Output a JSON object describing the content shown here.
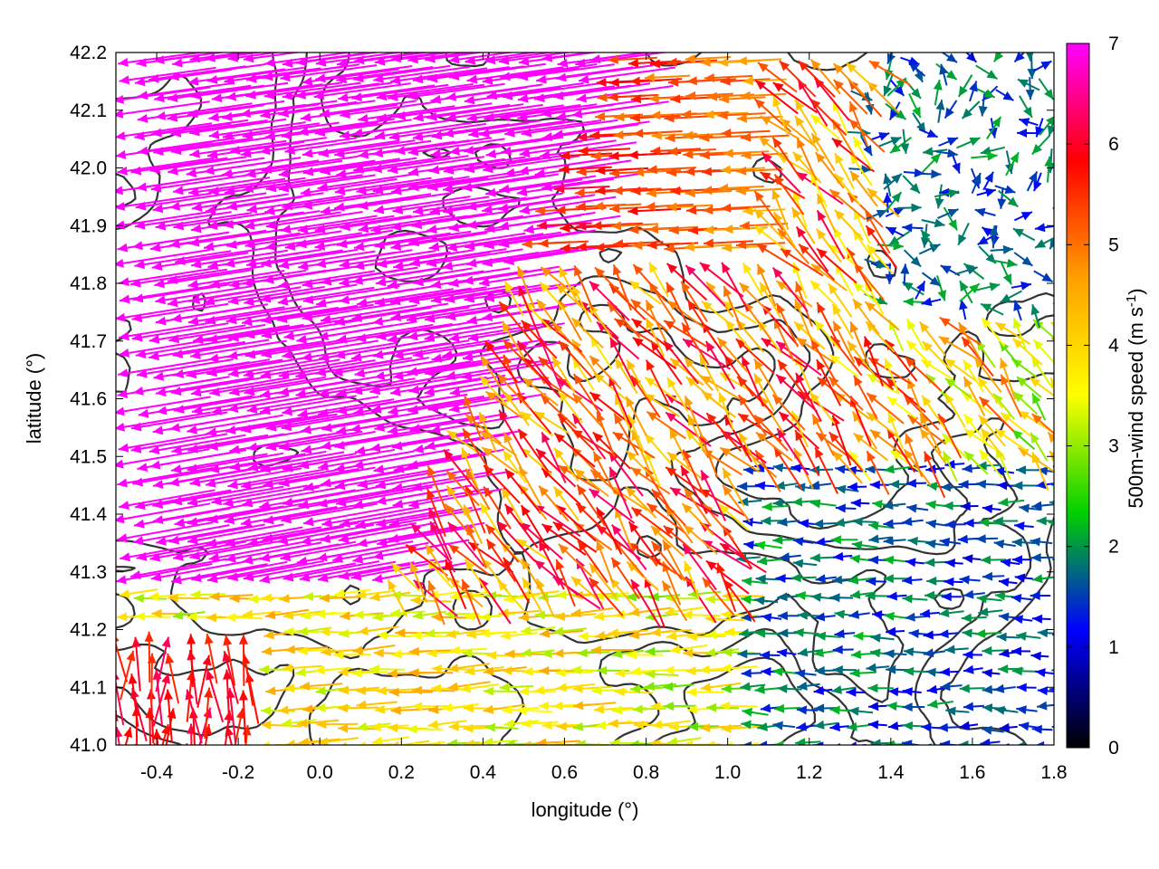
{
  "chart_data": {
    "type": "vector-field",
    "xlabel": "longitude (°)",
    "ylabel": "latitude (°)",
    "xlim": [
      -0.5,
      1.8
    ],
    "ylim": [
      41.0,
      42.2
    ],
    "x_ticks": [
      "-0.4",
      "-0.2",
      "0.0",
      "0.2",
      "0.4",
      "0.6",
      "0.8",
      "1.0",
      "1.2",
      "1.4",
      "1.6",
      "1.8"
    ],
    "y_ticks": [
      "41.0",
      "41.1",
      "41.2",
      "41.3",
      "41.4",
      "41.5",
      "41.6",
      "41.7",
      "41.8",
      "41.9",
      "42.0",
      "42.1",
      "42.2"
    ],
    "colorbar": {
      "label_main": "500m-wind speed (m s",
      "label_sup": "-1",
      "label_end": ")",
      "range": [
        0,
        7
      ],
      "ticks": [
        "0",
        "1",
        "2",
        "3",
        "4",
        "5",
        "6",
        "7"
      ],
      "colors": [
        "#000000",
        "#0000ff",
        "#00d000",
        "#ffff00",
        "#ffa000",
        "#ff0000",
        "#ff00ff"
      ]
    },
    "wind_regimes": [
      {
        "region": "north-west (lon -0.5 to 0.4, lat 41.3 to 42.2)",
        "direction": "from east-south-east",
        "speed_ms": 7
      },
      {
        "region": "north-central (lon 0.2 to 1.0, lat 41.8 to 42.2)",
        "direction": "from east",
        "speed_ms": 5.5
      },
      {
        "region": "central (lon 0.4 to 1.2, lat 41.4 to 41.8)",
        "direction": "from south-east",
        "speed_ms": 5
      },
      {
        "region": "north-east (lon 1.3 to 1.8, lat 41.8 to 42.2)",
        "direction": "variable",
        "speed_ms": 1.5
      },
      {
        "region": "south-east (lon 1.0 to 1.8, lat 41.0 to 41.5)",
        "direction": "from east",
        "speed_ms": 1.2
      },
      {
        "region": "south (lon -0.3 to 1.0, lat 41.0 to 41.25)",
        "direction": "from east",
        "speed_ms": 3.5
      },
      {
        "region": "south-west corner (lon -0.5 to -0.2, lat 41.0 to 41.2)",
        "direction": "from south",
        "speed_ms": 5.5
      }
    ]
  }
}
